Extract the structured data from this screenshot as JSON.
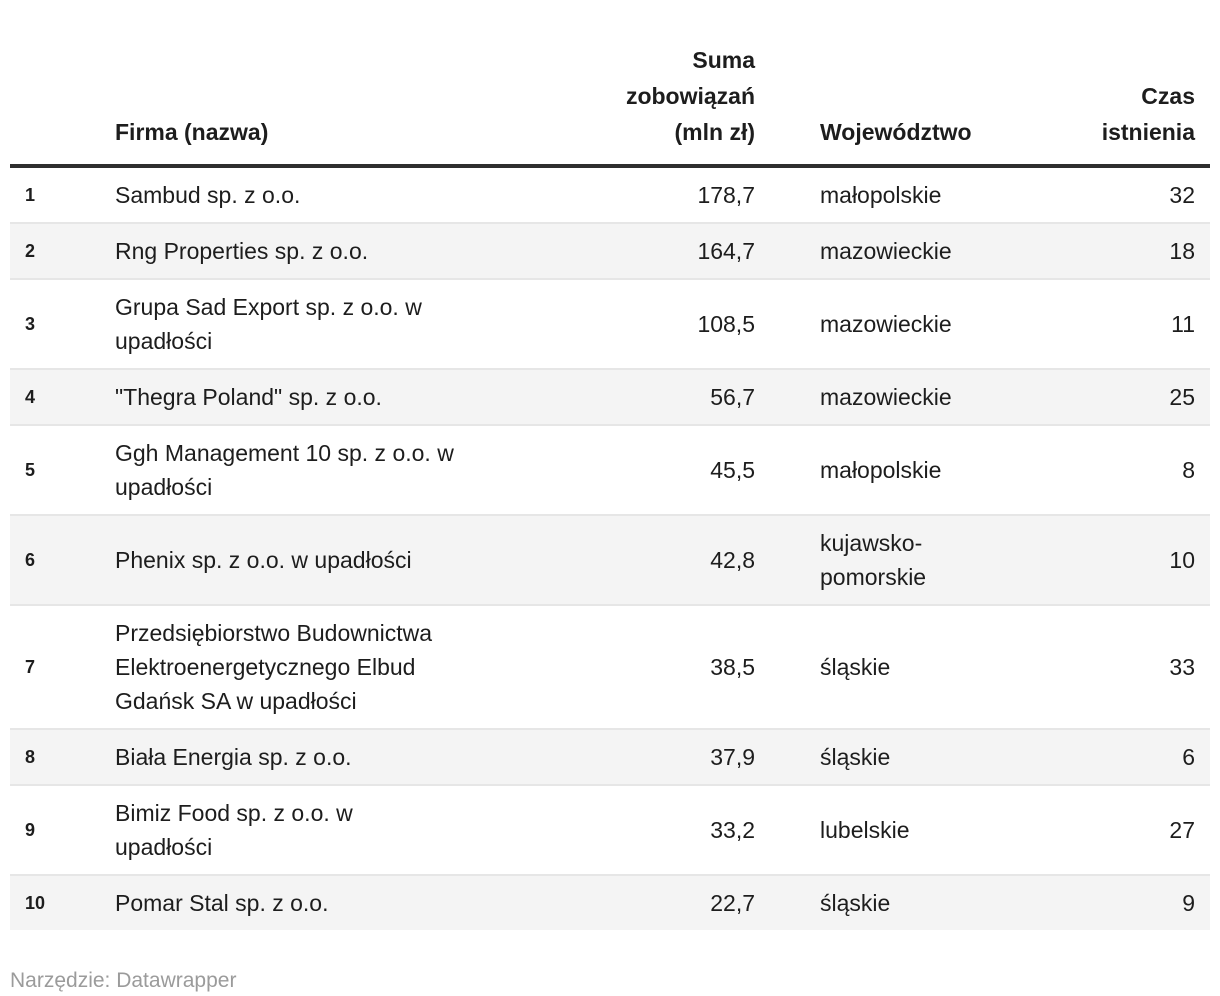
{
  "colors": {
    "text": "#1d1d1d",
    "muted_text": "#9b9b9b",
    "stripe": "#f4f4f4",
    "row_divider": "#e6e6e6",
    "header_rule": "#2e2e2e",
    "background": "#ffffff"
  },
  "table": {
    "headers": {
      "rank": "",
      "name": "Firma (nazwa)",
      "debt": "Suma\nzobowiązań\n(mln zł)",
      "region": "Województwo",
      "age": "Czas\nistnienia"
    },
    "rows": [
      {
        "rank": "1",
        "name": "Sambud sp. z o.o.",
        "debt": "178,7",
        "region": "małopolskie",
        "age": "32"
      },
      {
        "rank": "2",
        "name": "Rng Properties sp. z o.o.",
        "debt": "164,7",
        "region": "mazowieckie",
        "age": "18"
      },
      {
        "rank": "3",
        "name": "Grupa Sad Export sp. z o.o. w\nupadłości",
        "debt": "108,5",
        "region": "mazowieckie",
        "age": "11"
      },
      {
        "rank": "4",
        "name": "\"Thegra Poland\" sp. z o.o.",
        "debt": "56,7",
        "region": "mazowieckie",
        "age": "25"
      },
      {
        "rank": "5",
        "name": "Ggh Management 10 sp. z o.o. w\nupadłości",
        "debt": "45,5",
        "region": "małopolskie",
        "age": "8"
      },
      {
        "rank": "6",
        "name": "Phenix sp. z o.o. w upadłości",
        "debt": "42,8",
        "region": "kujawsko-\npomorskie",
        "age": "10"
      },
      {
        "rank": "7",
        "name": "Przedsiębiorstwo Budownictwa\nElektroenergetycznego Elbud\nGdańsk SA w upadłości",
        "debt": "38,5",
        "region": "śląskie",
        "age": "33"
      },
      {
        "rank": "8",
        "name": "Biała Energia sp. z o.o.",
        "debt": "37,9",
        "region": "śląskie",
        "age": "6"
      },
      {
        "rank": "9",
        "name": "Bimiz Food sp. z o.o. w\nupadłości",
        "debt": "33,2",
        "region": "lubelskie",
        "age": "27"
      },
      {
        "rank": "10",
        "name": "Pomar Stal sp. z o.o.",
        "debt": "22,7",
        "region": "śląskie",
        "age": "9"
      }
    ]
  },
  "footer": {
    "text": "Narzędzie: Datawrapper"
  },
  "chart_data": {
    "type": "table",
    "columns": [
      "",
      "Firma (nazwa)",
      "Suma zobowiązań (mln zł)",
      "Województwo",
      "Czas istnienia"
    ],
    "rows": [
      [
        1,
        "Sambud sp. z o.o.",
        178.7,
        "małopolskie",
        32
      ],
      [
        2,
        "Rng Properties sp. z o.o.",
        164.7,
        "mazowieckie",
        18
      ],
      [
        3,
        "Grupa Sad Export sp. z o.o. w upadłości",
        108.5,
        "mazowieckie",
        11
      ],
      [
        4,
        "\"Thegra Poland\" sp. z o.o.",
        56.7,
        "mazowieckie",
        25
      ],
      [
        5,
        "Ggh Management 10 sp. z o.o. w upadłości",
        45.5,
        "małopolskie",
        8
      ],
      [
        6,
        "Phenix sp. z o.o. w upadłości",
        42.8,
        "kujawsko-pomorskie",
        10
      ],
      [
        7,
        "Przedsiębiorstwo Budownictwa Elektroenergetycznego Elbud Gdańsk SA w upadłości",
        38.5,
        "śląskie",
        33
      ],
      [
        8,
        "Biała Energia sp. z o.o.",
        37.9,
        "śląskie",
        6
      ],
      [
        9,
        "Bimiz Food sp. z o.o. w upadłości",
        33.2,
        "lubelskie",
        27
      ],
      [
        10,
        "Pomar Stal sp. z o.o.",
        22.7,
        "śląskie",
        9
      ]
    ],
    "footer": "Narzędzie: Datawrapper"
  }
}
